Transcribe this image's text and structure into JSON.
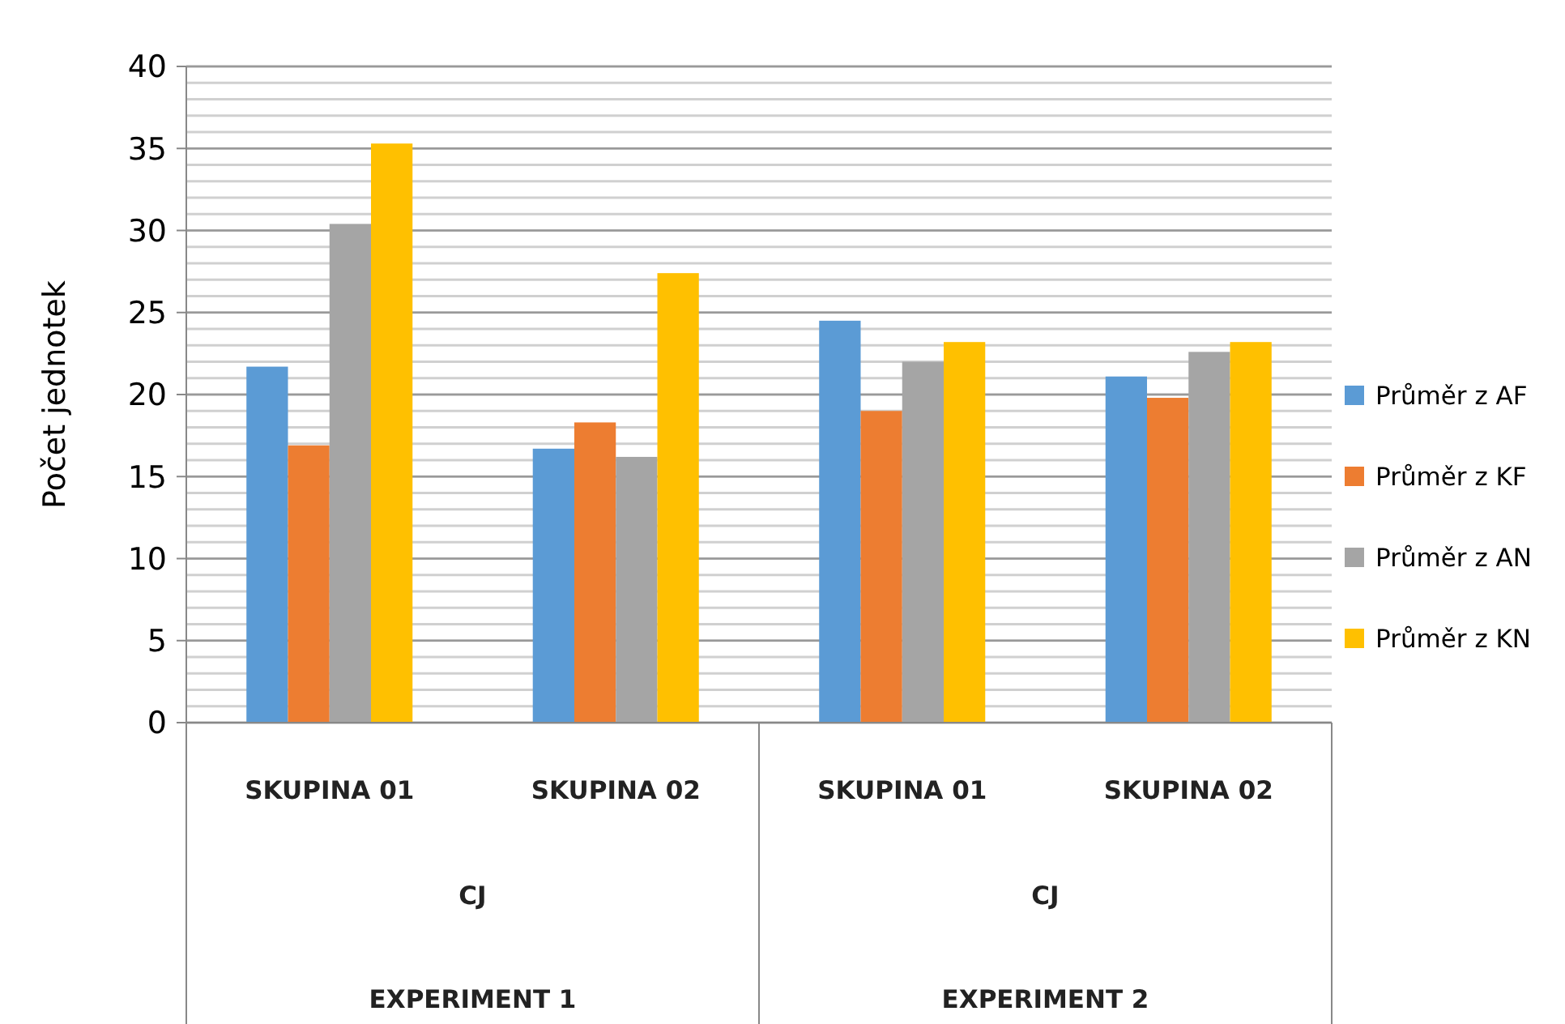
{
  "chart_data": {
    "type": "bar",
    "ylabel": "Počet jednotek",
    "categories": [
      "SKUPINA 01",
      "SKUPINA 02",
      "SKUPINA 01",
      "SKUPINA 02"
    ],
    "series": [
      {
        "name": "Průměr z AF",
        "color": "#5b9bd5",
        "values": [
          21.7,
          16.7,
          24.5,
          21.1
        ]
      },
      {
        "name": "Průměr z KF",
        "color": "#ed7d31",
        "values": [
          16.9,
          18.3,
          19.0,
          19.8
        ]
      },
      {
        "name": "Průměr z AN",
        "color": "#a5a5a5",
        "values": [
          30.4,
          16.2,
          22.0,
          22.6
        ]
      },
      {
        "name": "Průměr z KN",
        "color": "#ffc000",
        "values": [
          35.3,
          27.4,
          23.2,
          23.2
        ]
      }
    ],
    "annotations": [
      "CJ",
      "CJ",
      "EXPERIMENT 1",
      "EXPERIMENT 2"
    ],
    "ylim": [
      0,
      40
    ],
    "yticks": [
      0,
      5,
      10,
      15,
      20,
      25,
      30,
      35,
      40
    ],
    "grid": "y",
    "legend": "right"
  }
}
